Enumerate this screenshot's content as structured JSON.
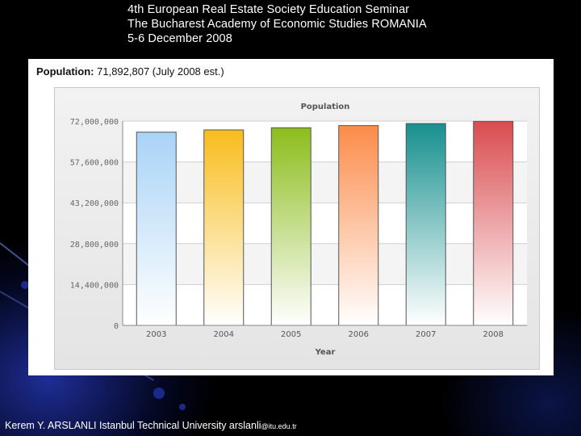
{
  "header": {
    "line1": "4th European Real Estate Society Education Seminar",
    "line2": "The Bucharest Academy of Economic Studies ROMANIA",
    "line3": "5-6 December 2008"
  },
  "population_line": {
    "label": "Population:",
    "value": "71,892,807 (July 2008 est.)"
  },
  "footer": {
    "text": "Kerem Y. ARSLANLI Istanbul Technical University arslanli",
    "email_tail": "@itu.edu.tr"
  },
  "colors": {
    "bars": [
      "#a8d3f7",
      "#f8bd1c",
      "#8cbd1c",
      "#fb8c4a",
      "#17908f",
      "#d94c50"
    ]
  },
  "chart_data": {
    "type": "bar",
    "title": "Population",
    "xlabel": "Year",
    "ylabel": "",
    "categories": [
      "2003",
      "2004",
      "2005",
      "2006",
      "2007",
      "2008"
    ],
    "values": [
      68109469,
      68893918,
      69660559,
      70413958,
      71158647,
      71892807
    ],
    "ylim": [
      0,
      72000000
    ],
    "yticks": [
      0,
      14400000,
      28800000,
      43200000,
      57600000,
      72000000
    ],
    "ytick_labels": [
      "0",
      "14,400,000",
      "28,800,000",
      "43,200,000",
      "57,600,000",
      "72,000,000"
    ],
    "grid": true,
    "legend": "none"
  }
}
